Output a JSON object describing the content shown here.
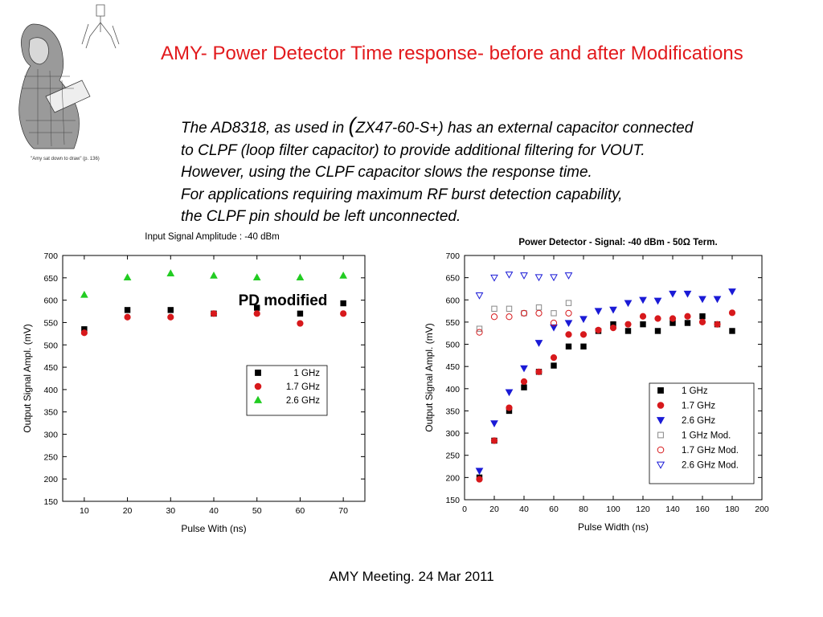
{
  "slide": {
    "title": "AMY- Power Detector  Time response- before and after Modifications",
    "body": {
      "line1_a": "The  AD8318, as used in ",
      "line1_paren": "(",
      "line1_b": "ZX47-60-S+) has an external capacitor connected",
      "line2": "to CLPF (loop filter capacitor) to provide additional filtering for VOUT.",
      "line3": "However, using the CLPF capacitor slows the response time.",
      "line4": "For applications requiring maximum RF burst detection capability,",
      "line5": "the CLPF pin should be  left unconnected."
    },
    "illustration_caption": "\"Amy sat down to draw\" (p. 136)",
    "footer": "AMY Meeting. 24 Mar 2011"
  },
  "colors": {
    "title": "#e2191c",
    "black": "#000000",
    "red": "#d7191c",
    "green": "#22cc22",
    "blue": "#1a1ad6"
  },
  "chart_data": [
    {
      "type": "scatter",
      "title": "Input Signal Amplitude : -40 dBm",
      "annotation": "PD modified",
      "xlabel": "Pulse With (ns)",
      "ylabel": "Output Signal Ampl. (mV)",
      "xlim": [
        5,
        75
      ],
      "ylim": [
        150,
        700
      ],
      "xticks": [
        "10",
        "20",
        "30",
        "40",
        "50",
        "60",
        "70"
      ],
      "yticks": [
        "150",
        "200",
        "250",
        "300",
        "350",
        "400",
        "450",
        "500",
        "550",
        "600",
        "650",
        "700"
      ],
      "legend_position": "lower-right",
      "series": [
        {
          "name": "1 GHz",
          "marker": "square",
          "color": "#000000",
          "x": [
            10,
            20,
            30,
            40,
            50,
            60,
            70
          ],
          "y": [
            535,
            578,
            578,
            570,
            583,
            570,
            593
          ]
        },
        {
          "name": "1.7 GHz",
          "marker": "circle",
          "color": "#d7191c",
          "x": [
            10,
            20,
            30,
            40,
            50,
            60,
            70
          ],
          "y": [
            527,
            562,
            562,
            570,
            570,
            548,
            570
          ]
        },
        {
          "name": "2.6 GHz",
          "marker": "triangle-up",
          "color": "#22cc22",
          "x": [
            10,
            20,
            30,
            40,
            50,
            60,
            70
          ],
          "y": [
            612,
            651,
            660,
            655,
            651,
            651,
            655
          ]
        }
      ]
    },
    {
      "type": "scatter",
      "title": "Power Detector - Signal: -40 dBm - 50Ω Term.",
      "xlabel": "Pulse Width (ns)",
      "ylabel": "Output Signal Ampl. (mV)",
      "xlim": [
        0,
        200
      ],
      "ylim": [
        150,
        700
      ],
      "xticks": [
        "0",
        "20",
        "40",
        "60",
        "80",
        "100",
        "120",
        "140",
        "160",
        "180",
        "200"
      ],
      "yticks": [
        "150",
        "200",
        "250",
        "300",
        "350",
        "400",
        "450",
        "500",
        "550",
        "600",
        "650",
        "700"
      ],
      "legend_position": "lower-right",
      "series": [
        {
          "name": "1   GHz",
          "marker": "square",
          "filled": true,
          "color": "#000000",
          "x": [
            10,
            20,
            30,
            40,
            50,
            60,
            70,
            80,
            90,
            100,
            110,
            120,
            130,
            140,
            150,
            160,
            170,
            180
          ],
          "y": [
            200,
            283,
            350,
            403,
            438,
            452,
            495,
            495,
            530,
            545,
            530,
            545,
            530,
            548,
            548,
            563,
            545,
            530
          ]
        },
        {
          "name": "1.7 GHz",
          "marker": "circle",
          "filled": true,
          "color": "#d7191c",
          "x": [
            10,
            20,
            30,
            40,
            50,
            60,
            70,
            80,
            90,
            100,
            110,
            120,
            130,
            140,
            150,
            160,
            170,
            180
          ],
          "y": [
            196,
            283,
            357,
            416,
            438,
            470,
            522,
            522,
            532,
            537,
            545,
            563,
            558,
            558,
            563,
            550,
            545,
            571
          ]
        },
        {
          "name": "2.6 GHz",
          "marker": "triangle-down",
          "filled": true,
          "color": "#1a1ad6",
          "x": [
            10,
            20,
            30,
            40,
            50,
            60,
            70,
            80,
            90,
            100,
            110,
            120,
            130,
            140,
            150,
            160,
            170,
            180
          ],
          "y": [
            215,
            322,
            392,
            446,
            503,
            538,
            548,
            557,
            575,
            578,
            593,
            600,
            598,
            614,
            614,
            602,
            602,
            619
          ]
        },
        {
          "name": "1   GHz Mod.",
          "marker": "square",
          "filled": false,
          "color": "#888888",
          "x": [
            10,
            20,
            30,
            40,
            50,
            60,
            70
          ],
          "y": [
            535,
            580,
            580,
            570,
            583,
            570,
            593
          ]
        },
        {
          "name": "1.7 GHz Mod.",
          "marker": "circle",
          "filled": false,
          "color": "#d7191c",
          "x": [
            10,
            20,
            30,
            40,
            50,
            60,
            70
          ],
          "y": [
            527,
            562,
            562,
            570,
            570,
            548,
            570
          ]
        },
        {
          "name": "2.6 GHz Mod.",
          "marker": "triangle-down",
          "filled": false,
          "color": "#1a1ad6",
          "x": [
            10,
            20,
            30,
            40,
            50,
            60,
            70
          ],
          "y": [
            610,
            650,
            657,
            655,
            651,
            651,
            655
          ]
        }
      ]
    }
  ]
}
